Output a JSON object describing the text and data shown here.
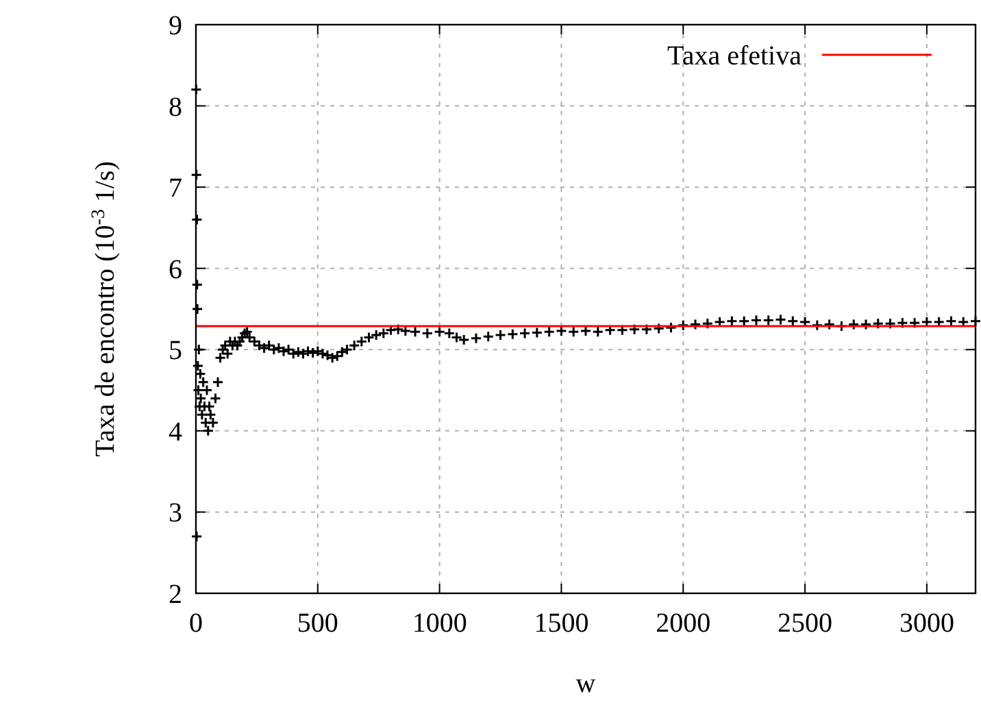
{
  "chart_data": {
    "type": "scatter",
    "xlabel": "w",
    "ylabel": "Taxa de encontro (10$^{-3}$ 1/s)",
    "xlim": [
      0,
      3200
    ],
    "ylim": [
      2,
      9
    ],
    "xticks": [
      0,
      500,
      1000,
      1500,
      2000,
      2500,
      3000
    ],
    "yticks": [
      2,
      3,
      4,
      5,
      6,
      7,
      8,
      9
    ],
    "grid": true,
    "legend": "top right",
    "series": [
      {
        "marker": "cross",
        "color": "#000000",
        "x": [
          1,
          2,
          3,
          4,
          5,
          6,
          8,
          10,
          12,
          15,
          18,
          20,
          25,
          30,
          35,
          40,
          45,
          50,
          55,
          60,
          70,
          80,
          90,
          100,
          110,
          120,
          130,
          140,
          150,
          160,
          170,
          180,
          190,
          200,
          210,
          220,
          240,
          260,
          280,
          300,
          320,
          340,
          360,
          380,
          400,
          420,
          440,
          460,
          480,
          500,
          520,
          540,
          560,
          580,
          600,
          620,
          650,
          680,
          710,
          740,
          770,
          800,
          830,
          860,
          900,
          950,
          1000,
          1040,
          1070,
          1100,
          1150,
          1200,
          1250,
          1300,
          1350,
          1400,
          1450,
          1500,
          1550,
          1600,
          1650,
          1700,
          1750,
          1800,
          1850,
          1900,
          1950,
          2000,
          2050,
          2100,
          2150,
          2200,
          2250,
          2300,
          2350,
          2400,
          2450,
          2500,
          2550,
          2600,
          2650,
          2700,
          2750,
          2800,
          2850,
          2900,
          2950,
          3000,
          3050,
          3100,
          3150,
          3200
        ],
        "values": [
          8.2,
          7.15,
          2.7,
          6.6,
          5.8,
          5.5,
          4.8,
          4.5,
          5.0,
          4.3,
          4.7,
          4.4,
          4.2,
          4.6,
          4.3,
          4.1,
          4.5,
          4.0,
          4.3,
          4.2,
          4.1,
          4.4,
          4.6,
          4.9,
          5.0,
          5.05,
          4.95,
          5.1,
          5.05,
          5.1,
          5.05,
          5.1,
          5.15,
          5.2,
          5.22,
          5.15,
          5.1,
          5.05,
          5.02,
          5.05,
          5.0,
          5.02,
          4.98,
          5.0,
          4.95,
          4.97,
          4.95,
          4.98,
          4.96,
          4.98,
          4.95,
          4.93,
          4.9,
          4.92,
          4.97,
          5.0,
          5.05,
          5.1,
          5.15,
          5.18,
          5.2,
          5.24,
          5.25,
          5.23,
          5.22,
          5.2,
          5.22,
          5.2,
          5.15,
          5.12,
          5.14,
          5.16,
          5.18,
          5.19,
          5.2,
          5.21,
          5.22,
          5.23,
          5.22,
          5.23,
          5.22,
          5.24,
          5.24,
          5.25,
          5.25,
          5.26,
          5.27,
          5.3,
          5.31,
          5.32,
          5.34,
          5.35,
          5.35,
          5.36,
          5.36,
          5.37,
          5.35,
          5.34,
          5.3,
          5.31,
          5.29,
          5.31,
          5.31,
          5.32,
          5.32,
          5.33,
          5.33,
          5.34,
          5.34,
          5.35,
          5.34,
          5.35
        ]
      },
      {
        "type": "line",
        "name": "Taxa efetiva",
        "color": "#ff0000",
        "line_style": "solid",
        "x": [
          0,
          3200
        ],
        "values": [
          5.29,
          5.29
        ]
      }
    ]
  }
}
